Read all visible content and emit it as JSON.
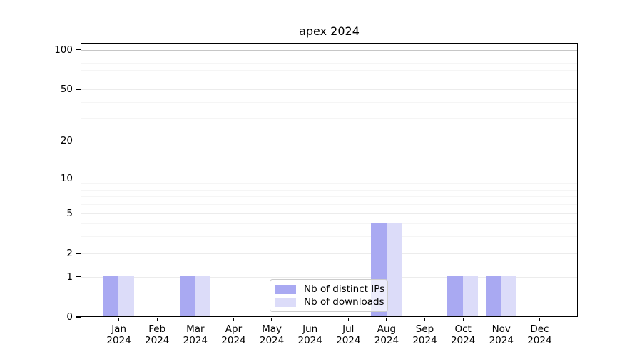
{
  "title": "apex 2024",
  "chart_data": {
    "type": "bar",
    "title": "apex 2024",
    "x_months": [
      "Jan",
      "Feb",
      "Mar",
      "Apr",
      "May",
      "Jun",
      "Jul",
      "Aug",
      "Sep",
      "Oct",
      "Nov",
      "Dec"
    ],
    "x_year": "2024",
    "series": [
      {
        "name": "Nb of distinct IPs",
        "color": "#a9a9f2",
        "values": [
          1,
          0,
          1,
          0,
          0,
          0,
          0,
          4,
          0,
          1,
          1,
          0
        ]
      },
      {
        "name": "Nb of downloads",
        "color": "#dcdcf9",
        "values": [
          1,
          0,
          1,
          0,
          0,
          0,
          0,
          4,
          0,
          1,
          1,
          0
        ]
      }
    ],
    "yscale": "log1p",
    "ylim": [
      0,
      113
    ],
    "yticks_major": [
      0,
      1,
      2,
      5,
      10,
      20,
      50,
      100
    ],
    "yticks_minor": [
      3,
      4,
      6,
      7,
      8,
      9,
      30,
      40,
      60,
      70,
      80,
      90
    ],
    "emphasized_gridline": 100,
    "grid": "horizontal",
    "legend_position": "inside-bottom-center"
  },
  "colors": {
    "background": "#ffffff",
    "axis": "#000000",
    "text": "#000000",
    "grid_major": "#ececec",
    "grid_minor": "#f5f5f5",
    "grid_emphasized": "#c6c6c6",
    "legend_border": "#cccccc"
  }
}
